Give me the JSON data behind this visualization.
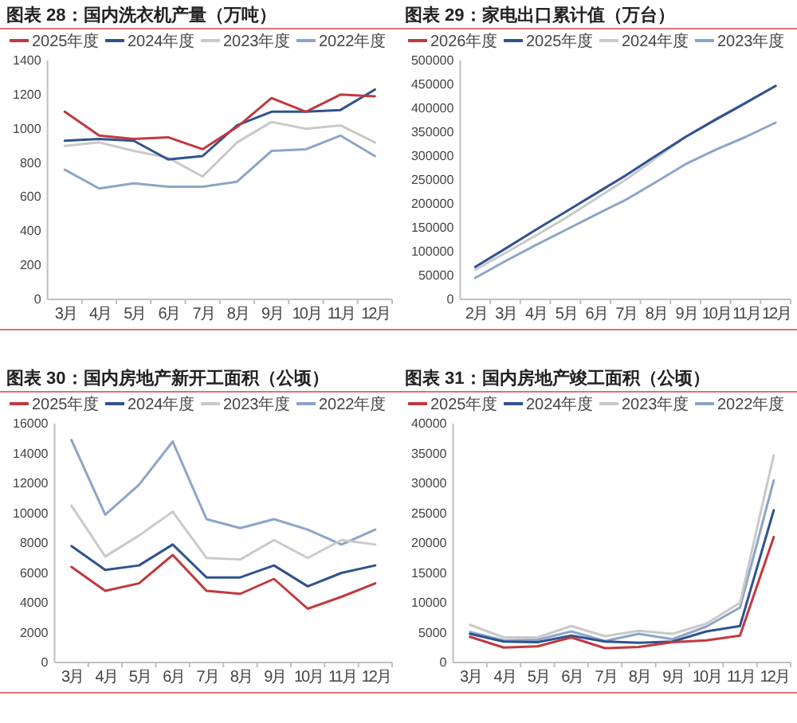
{
  "chart_data": [
    {
      "type": "line",
      "title": "图表 28：国内洗衣机产量（万吨）",
      "categories": [
        "3月",
        "4月",
        "5月",
        "6月",
        "7月",
        "8月",
        "9月",
        "10月",
        "11月",
        "12月"
      ],
      "ylim": [
        0,
        1400
      ],
      "yticks": [
        0,
        200,
        400,
        600,
        800,
        1000,
        1200,
        1400
      ],
      "legend": "top",
      "series": [
        {
          "name": "2025年度",
          "color": "#c0393e",
          "values": [
            1100,
            960,
            940,
            950,
            880,
            1010,
            1180,
            1100,
            1200,
            1190
          ]
        },
        {
          "name": "2024年度",
          "color": "#2f528f",
          "values": [
            930,
            940,
            930,
            820,
            840,
            1020,
            1100,
            1100,
            1110,
            1230
          ]
        },
        {
          "name": "2023年度",
          "color": "#c9c9c9",
          "values": [
            900,
            920,
            870,
            830,
            720,
            920,
            1040,
            1000,
            1020,
            920
          ]
        },
        {
          "name": "2022年度",
          "color": "#8ca5c8",
          "values": [
            760,
            650,
            680,
            660,
            660,
            690,
            870,
            880,
            960,
            840
          ]
        }
      ]
    },
    {
      "type": "line",
      "title": "图表 29：家电出口累计值（万台）",
      "categories": [
        "2月",
        "3月",
        "4月",
        "5月",
        "6月",
        "7月",
        "8月",
        "9月",
        "10月",
        "11月",
        "12月"
      ],
      "ylim": [
        0,
        500000
      ],
      "yticks": [
        0,
        50000,
        100000,
        150000,
        200000,
        250000,
        300000,
        350000,
        400000,
        450000,
        500000
      ],
      "legend": "top",
      "series": [
        {
          "name": "2026年度",
          "color": "#c0393e",
          "values": [
            null,
            null,
            null,
            null,
            null,
            null,
            null,
            null,
            null,
            null,
            null
          ]
        },
        {
          "name": "2025年度",
          "color": "#2f528f",
          "values": [
            68000,
            106000,
            145000,
            183000,
            221000,
            259000,
            300000,
            340000,
            376000,
            411000,
            447000
          ]
        },
        {
          "name": "2024年度",
          "color": "#c9c9c9",
          "values": [
            62000,
            97000,
            133000,
            170000,
            210000,
            250000,
            295000,
            340000,
            378000,
            412000,
            446000
          ]
        },
        {
          "name": "2023年度",
          "color": "#8ca5c8",
          "values": [
            45000,
            80000,
            113000,
            145000,
            177000,
            208000,
            245000,
            283000,
            313000,
            340000,
            370000
          ]
        }
      ]
    },
    {
      "type": "line",
      "title": "图表 30：国内房地产新开工面积（公顷）",
      "categories": [
        "3月",
        "4月",
        "5月",
        "6月",
        "7月",
        "8月",
        "9月",
        "10月",
        "11月",
        "12月"
      ],
      "ylim": [
        0,
        16000
      ],
      "yticks": [
        0,
        2000,
        4000,
        6000,
        8000,
        10000,
        12000,
        14000,
        16000
      ],
      "legend": "top",
      "series": [
        {
          "name": "2025年度",
          "color": "#c0393e",
          "values": [
            6400,
            4800,
            5300,
            7200,
            4800,
            4600,
            5600,
            3600,
            4400,
            5300
          ]
        },
        {
          "name": "2024年度",
          "color": "#2f528f",
          "values": [
            7800,
            6200,
            6500,
            7900,
            5700,
            5700,
            6500,
            5100,
            6000,
            6500
          ]
        },
        {
          "name": "2023年度",
          "color": "#c9c9c9",
          "values": [
            10500,
            7100,
            8500,
            10100,
            7000,
            6900,
            8200,
            7000,
            8200,
            7900
          ]
        },
        {
          "name": "2022年度",
          "color": "#8ca5c8",
          "values": [
            14900,
            9900,
            11900,
            14800,
            9600,
            9000,
            9600,
            8900,
            7900,
            8900
          ]
        }
      ]
    },
    {
      "type": "line",
      "title": "图表 31：国内房地产竣工面积（公顷）",
      "categories": [
        "3月",
        "4月",
        "5月",
        "6月",
        "7月",
        "8月",
        "9月",
        "10月",
        "11月",
        "12月"
      ],
      "ylim": [
        0,
        40000
      ],
      "yticks": [
        0,
        5000,
        10000,
        15000,
        20000,
        25000,
        30000,
        35000,
        40000
      ],
      "legend": "top",
      "series": [
        {
          "name": "2025年度",
          "color": "#c0393e",
          "values": [
            4300,
            2500,
            2700,
            4200,
            2400,
            2600,
            3400,
            3700,
            4500,
            21000
          ]
        },
        {
          "name": "2024年度",
          "color": "#2f528f",
          "values": [
            4800,
            3500,
            3400,
            4500,
            3500,
            3300,
            3500,
            5200,
            6100,
            25500
          ]
        },
        {
          "name": "2023年度",
          "color": "#c9c9c9",
          "values": [
            6300,
            4200,
            4200,
            6100,
            4400,
            5300,
            4800,
            6500,
            10000,
            34700
          ]
        },
        {
          "name": "2022年度",
          "color": "#8ca5c8",
          "values": [
            5100,
            3700,
            3800,
            5200,
            3600,
            4800,
            3900,
            6000,
            9200,
            30500
          ]
        }
      ]
    }
  ]
}
